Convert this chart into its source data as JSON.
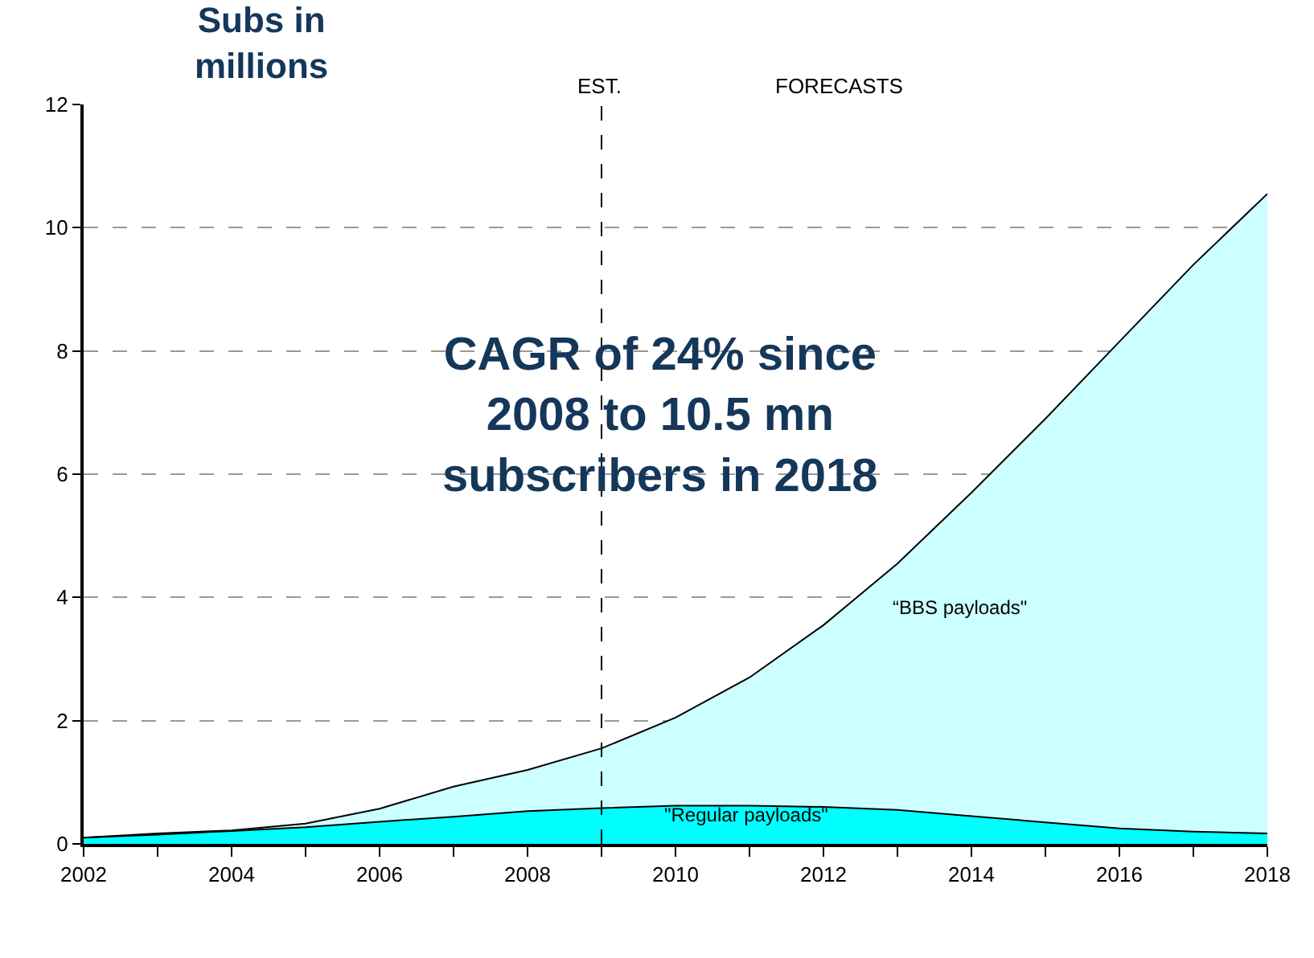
{
  "chart_data": {
    "type": "area",
    "stacked": true,
    "ylabel": "Subs in millions",
    "x": [
      2002,
      2003,
      2004,
      2005,
      2006,
      2007,
      2008,
      2009,
      2010,
      2011,
      2012,
      2013,
      2014,
      2015,
      2016,
      2017,
      2018
    ],
    "series": [
      {
        "name": "\"Regular payloads\"",
        "color": "#00ffff",
        "values": [
          0.1,
          0.15,
          0.21,
          0.27,
          0.36,
          0.44,
          0.53,
          0.58,
          0.62,
          0.62,
          0.6,
          0.55,
          0.45,
          0.35,
          0.25,
          0.2,
          0.17
        ]
      },
      {
        "name": "“BBS payloads\"",
        "color": "#ccffff",
        "values": [
          0,
          0.02,
          0.01,
          0.06,
          0.21,
          0.49,
          0.67,
          0.97,
          1.43,
          2.08,
          2.95,
          4.0,
          5.25,
          6.55,
          7.9,
          9.2,
          10.38
        ]
      }
    ],
    "xlim": [
      2002,
      2018
    ],
    "xticks": [
      2002,
      {
        "value": 2003,
        "label": null
      },
      2004,
      {
        "value": 2005,
        "label": null
      },
      2006,
      {
        "value": 2007,
        "label": null
      },
      2008,
      {
        "value": 2009,
        "label": null
      },
      2010,
      {
        "value": 2011,
        "label": null
      },
      2012,
      {
        "value": 2013,
        "label": null
      },
      2014,
      {
        "value": 2015,
        "label": null
      },
      2016,
      {
        "value": 2017,
        "label": null
      },
      2018
    ],
    "ylim": [
      0,
      12
    ],
    "yticks": [
      0,
      2,
      4,
      6,
      8,
      10,
      12
    ],
    "grid": "y",
    "legend": false,
    "ref_lines": [
      {
        "axis": "x",
        "value": 2009,
        "line_style": "dashed",
        "color": "#000000"
      }
    ],
    "annotations": [
      "EST.",
      "FORECASTS",
      "CAGR of 24% since 2008 to 10.5 mn subscribers in 2018"
    ]
  }
}
